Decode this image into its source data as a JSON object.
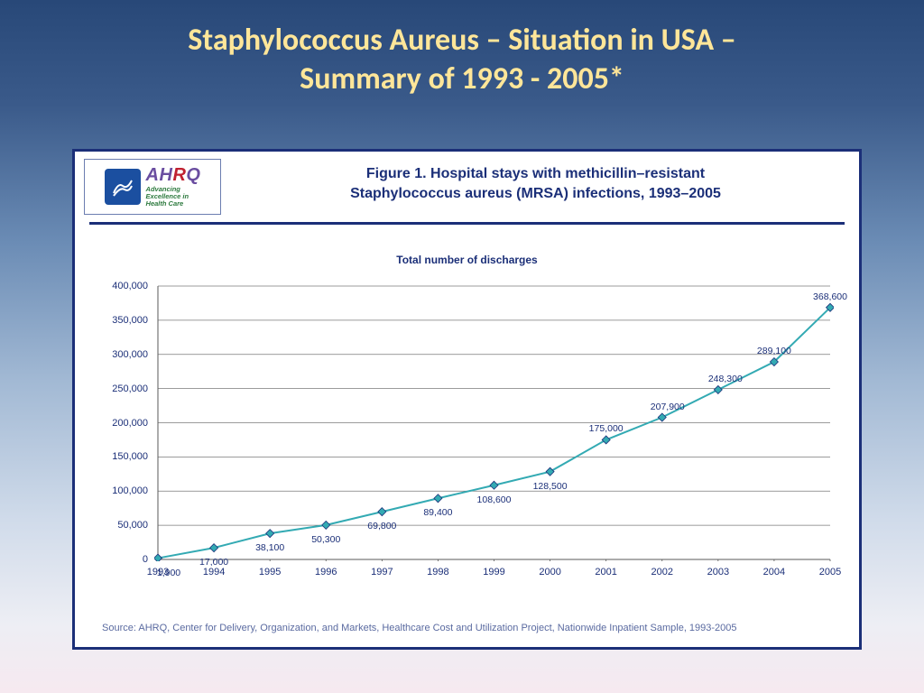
{
  "slide": {
    "title_line1": "Staphylococcus Aureus – Situation in USA  –",
    "title_line2": "Summary of 1993 - 2005*",
    "title_color": "#ffe699",
    "bg_gradient_top": "#284878",
    "bg_gradient_bottom": "#f6e9f0"
  },
  "panel": {
    "border_color": "#1b2f78",
    "bg": "#ffffff",
    "logo": {
      "ahrq_text": "AHRQ",
      "ahrq_colors_primary": "#6a4da0",
      "ahrq_colors_R": "#c02030",
      "tagline_line1": "Advancing",
      "tagline_line2": "Excellence in",
      "tagline_line3": "Health Care",
      "tagline_color": "#2d7a3e",
      "seal_bg": "#1b4fa0"
    },
    "figure_title_line1": "Figure 1. Hospital stays with methicillin–resistant",
    "figure_title_line2": "Staphylococcus aureus (MRSA) infections, 1993–2005",
    "figure_title_color": "#1b2f78",
    "figure_title_fontsize": 16,
    "rule_color": "#1b2f78"
  },
  "chart": {
    "type": "line",
    "subtitle": "Total number of discharges",
    "subtitle_fontsize": 12,
    "years": [
      "1993",
      "1994",
      "1995",
      "1996",
      "1997",
      "1998",
      "1999",
      "2000",
      "2001",
      "2002",
      "2003",
      "2004",
      "2005"
    ],
    "values": [
      1900,
      17000,
      38100,
      50300,
      69800,
      89400,
      108600,
      128500,
      175000,
      207900,
      248300,
      289100,
      368600
    ],
    "value_labels": [
      "1,900",
      "17,000",
      "38,100",
      "50,300",
      "69,800",
      "89,400",
      "108,600",
      "128,500",
      "175,000",
      "207,900",
      "248,300",
      "289,100",
      "368,600"
    ],
    "ylim": [
      0,
      400000
    ],
    "ytick_step": 50000,
    "ytick_labels": [
      "0",
      "50,000",
      "100,000",
      "150,000",
      "200,000",
      "250,000",
      "300,000",
      "350,000",
      "400,000"
    ],
    "line_color": "#33aab3",
    "line_width": 2,
    "marker_shape": "diamond",
    "marker_fill": "#33aab3",
    "marker_stroke": "#1b2f78",
    "marker_size": 9,
    "grid_color": "#7a7a7a",
    "axis_color": "#5a5a5a",
    "label_fontsize": 11,
    "data_label_fontsize": 10.5,
    "label_color": "#1b2f78",
    "plot_bg": "#ffffff"
  },
  "source": {
    "text": "Source: AHRQ, Center for Delivery, Organization, and Markets, Healthcare Cost and Utilization Project, Nationwide Inpatient Sample, 1993-2005",
    "color": "#5a6aa0",
    "fontsize": 11
  }
}
